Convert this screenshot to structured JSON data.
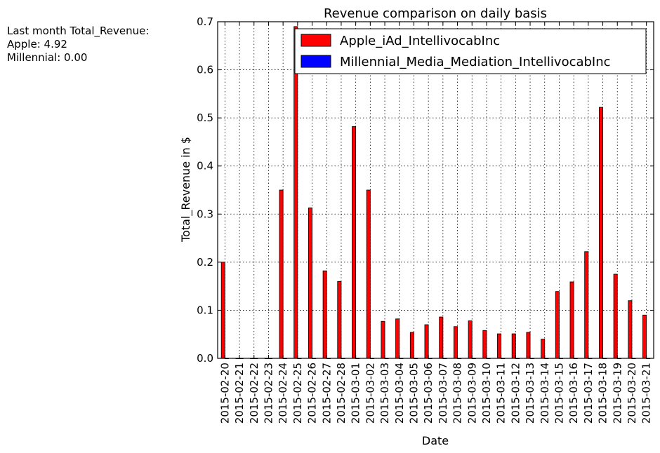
{
  "summary": {
    "line1": "Last month Total_Revenue:",
    "line2": "Apple: 4.92",
    "line3": "Millennial: 0.00"
  },
  "chart_data": {
    "type": "bar",
    "title": "Revenue comparison on daily basis",
    "xlabel": "Date",
    "ylabel": "Total_Revenue in $",
    "ylim": [
      0,
      0.7
    ],
    "yticks": [
      "0.0",
      "0.1",
      "0.2",
      "0.3",
      "0.4",
      "0.5",
      "0.6",
      "0.7"
    ],
    "grid": true,
    "legend_position": "top-right",
    "categories": [
      "2015-02-20",
      "2015-02-21",
      "2015-02-22",
      "2015-02-23",
      "2015-02-24",
      "2015-02-25",
      "2015-02-26",
      "2015-02-27",
      "2015-02-28",
      "2015-03-01",
      "2015-03-02",
      "2015-03-03",
      "2015-03-04",
      "2015-03-05",
      "2015-03-06",
      "2015-03-07",
      "2015-03-08",
      "2015-03-09",
      "2015-03-10",
      "2015-03-11",
      "2015-03-12",
      "2015-03-13",
      "2015-03-14",
      "2015-03-15",
      "2015-03-16",
      "2015-03-17",
      "2015-03-18",
      "2015-03-19",
      "2015-03-20",
      "2015-03-21"
    ],
    "series": [
      {
        "name": "Apple_iAd_IntellivocabInc",
        "color": "#ff0000",
        "values": [
          0.2,
          0.0,
          0.0,
          0.0,
          0.35,
          0.69,
          0.313,
          0.182,
          0.16,
          0.482,
          0.35,
          0.077,
          0.082,
          0.054,
          0.07,
          0.086,
          0.066,
          0.078,
          0.058,
          0.051,
          0.051,
          0.054,
          0.04,
          0.139,
          0.159,
          0.222,
          0.522,
          0.175,
          0.12,
          0.09
        ]
      },
      {
        "name": "Millennial_Media_Mediation_IntellivocabInc",
        "color": "#0000ff",
        "values": [
          0.0,
          0.0,
          0.0,
          0.0,
          0.0,
          0.0,
          0.0,
          0.0,
          0.0,
          0.0,
          0.0,
          0.0,
          0.0,
          0.0,
          0.0,
          0.0,
          0.0,
          0.0,
          0.0,
          0.0,
          0.0,
          0.0,
          0.0,
          0.0,
          0.0,
          0.0,
          0.0,
          0.0,
          0.0,
          0.0
        ]
      }
    ]
  }
}
